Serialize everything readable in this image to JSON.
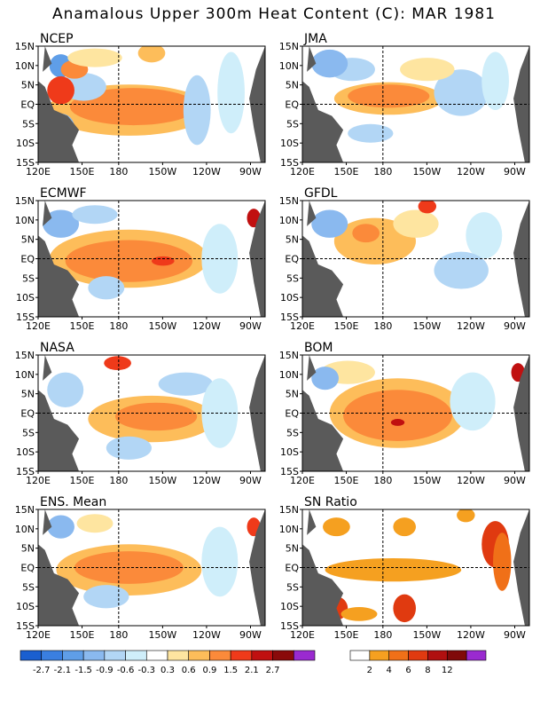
{
  "title": "Anamalous Upper 300m Heat Content (C): MAR 1981",
  "axes": {
    "lat_ticks": [
      "15N",
      "10N",
      "5N",
      "EQ",
      "5S",
      "10S",
      "15S"
    ],
    "lon_ticks": [
      "120E",
      "150E",
      "180",
      "150W",
      "120W",
      "90W"
    ]
  },
  "panels": [
    {
      "label": "NCEP"
    },
    {
      "label": "JMA"
    },
    {
      "label": "ECMWF"
    },
    {
      "label": "GFDL"
    },
    {
      "label": "NASA"
    },
    {
      "label": "BOM"
    },
    {
      "label": "ENS. Mean"
    },
    {
      "label": "SN Ratio"
    }
  ],
  "colorbar_anomaly": {
    "labels": [
      "-2.7",
      "-2.1",
      "-1.5",
      "-0.9",
      "-0.6",
      "-0.3",
      "0.3",
      "0.6",
      "0.9",
      "1.5",
      "2.1",
      "2.7"
    ],
    "colors": [
      "#1a5fd0",
      "#3a7fe0",
      "#5f9ee8",
      "#8ab9ef",
      "#b2d6f5",
      "#cfeefa",
      "#ffffff",
      "#fee5a0",
      "#fdbd5a",
      "#fb8a3a",
      "#ef3a1a",
      "#c01010",
      "#8a0a0a",
      "#9a2ad0"
    ]
  },
  "colorbar_sn": {
    "labels": [
      "2",
      "4",
      "6",
      "8",
      "12"
    ],
    "colors": [
      "#ffffff",
      "#f5a020",
      "#f07018",
      "#e03a10",
      "#b01010",
      "#800a0a",
      "#9a2ad0"
    ]
  },
  "colors": {
    "land": "#5a5a5a"
  }
}
